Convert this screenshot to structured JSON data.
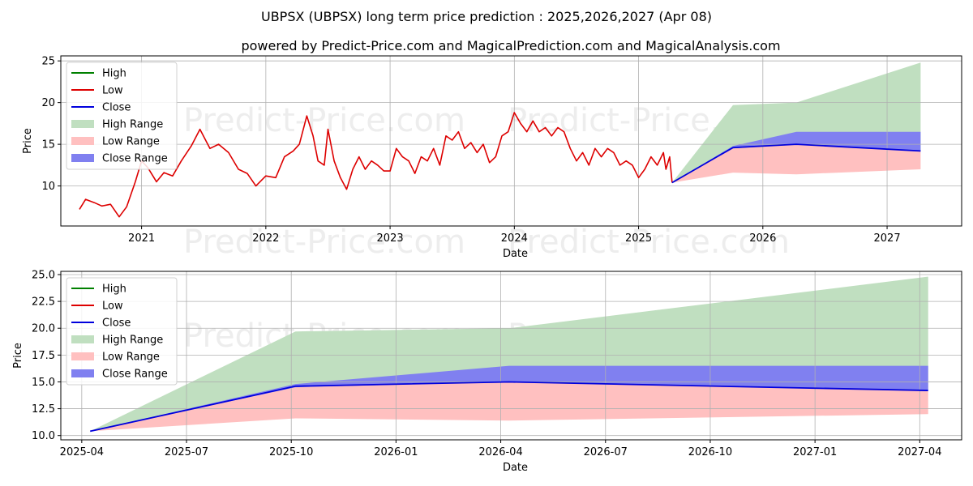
{
  "title": "UBPSX (UBPSX) long term price prediction : 2025,2026,2027 (Apr 08)",
  "subtitle": "powered by Predict-Price.com and MagicalPrediction.com and MagicalAnalysis.com",
  "watermark": "Predict-Price.com",
  "colors": {
    "high": "#008000",
    "low": "#dd0000",
    "close": "#0000dd",
    "high_range": "#c0dfc0",
    "low_range": "#ffc0c0",
    "close_range": "#8080f0",
    "grid": "#b0b0b0"
  },
  "legend": {
    "high": "High",
    "low": "Low",
    "close": "Close",
    "high_range": "High Range",
    "low_range": "Low Range",
    "close_range": "Close Range"
  },
  "chart_data": [
    {
      "type": "line",
      "title": "UBPSX (UBPSX) long term price prediction : 2025,2026,2027 (Apr 08)",
      "xlabel": "Date",
      "ylabel": "Price",
      "xlim": [
        2020.35,
        2027.6
      ],
      "ylim": [
        5.2,
        25.6
      ],
      "x_ticks": [
        2021,
        2022,
        2023,
        2024,
        2025,
        2026,
        2027
      ],
      "x_tick_labels": [
        "2021",
        "2022",
        "2023",
        "2024",
        "2025",
        "2026",
        "2027"
      ],
      "y_ticks": [
        10,
        15,
        20,
        25
      ],
      "y_tick_labels": [
        "10",
        "15",
        "20",
        "25"
      ],
      "grid": true,
      "legend_position": "upper-left",
      "history_low": {
        "x": [
          2020.5,
          2020.55,
          2020.62,
          2020.68,
          2020.75,
          2020.82,
          2020.88,
          2020.95,
          2021.0,
          2021.05,
          2021.12,
          2021.18,
          2021.25,
          2021.32,
          2021.4,
          2021.47,
          2021.55,
          2021.62,
          2021.7,
          2021.78,
          2021.85,
          2021.92,
          2022.0,
          2022.08,
          2022.15,
          2022.22,
          2022.27,
          2022.33,
          2022.38,
          2022.42,
          2022.47,
          2022.5,
          2022.55,
          2022.6,
          2022.65,
          2022.7,
          2022.75,
          2022.8,
          2022.85,
          2022.9,
          2022.95,
          2023.0,
          2023.05,
          2023.1,
          2023.15,
          2023.2,
          2023.25,
          2023.3,
          2023.35,
          2023.4,
          2023.45,
          2023.5,
          2023.55,
          2023.6,
          2023.65,
          2023.7,
          2023.75,
          2023.8,
          2023.85,
          2023.9,
          2023.95,
          2024.0,
          2024.05,
          2024.1,
          2024.15,
          2024.2,
          2024.25,
          2024.3,
          2024.35,
          2024.4,
          2024.45,
          2024.5,
          2024.55,
          2024.6,
          2024.65,
          2024.7,
          2024.75,
          2024.8,
          2024.85,
          2024.9,
          2024.95,
          2025.0,
          2025.05,
          2025.1,
          2025.15,
          2025.2,
          2025.22,
          2025.25,
          2025.27
        ],
        "values": [
          7.2,
          8.4,
          8.0,
          7.6,
          7.8,
          6.3,
          7.5,
          10.5,
          13.0,
          12.2,
          10.5,
          11.6,
          11.2,
          13.0,
          14.8,
          16.8,
          14.5,
          15.0,
          14.0,
          12.0,
          11.5,
          10.0,
          11.2,
          11.0,
          13.5,
          14.2,
          15.0,
          18.4,
          16.0,
          13.0,
          12.5,
          16.8,
          13.0,
          11.0,
          9.6,
          12.0,
          13.5,
          12.0,
          13.0,
          12.5,
          11.8,
          11.8,
          14.5,
          13.5,
          13.0,
          11.5,
          13.5,
          13.0,
          14.5,
          12.5,
          16.0,
          15.5,
          16.5,
          14.5,
          15.2,
          14.0,
          15.0,
          12.8,
          13.5,
          16.0,
          16.5,
          18.8,
          17.5,
          16.5,
          17.8,
          16.5,
          17.0,
          16.0,
          17.0,
          16.5,
          14.5,
          13.0,
          14.0,
          12.5,
          14.5,
          13.5,
          14.5,
          14.0,
          12.5,
          13.0,
          12.5,
          11.0,
          12.0,
          13.5,
          12.5,
          14.0,
          12.0,
          13.5,
          10.4
        ]
      },
      "forecast": {
        "x": [
          2025.27,
          2025.76,
          2026.27,
          2027.27
        ],
        "close": [
          10.4,
          14.6,
          15.0,
          14.2
        ],
        "high_range_upper": [
          10.4,
          19.7,
          20.0,
          24.8
        ],
        "low_range_lower": [
          10.4,
          11.6,
          11.4,
          12.0
        ],
        "close_range_upper": [
          10.4,
          14.8,
          16.5,
          16.5
        ],
        "close_range_lower": [
          10.4,
          14.5,
          15.0,
          14.2
        ]
      }
    },
    {
      "type": "line",
      "xlabel": "Date",
      "ylabel": "Price",
      "xlim": [
        2025.2,
        2027.35
      ],
      "ylim": [
        9.6,
        25.3
      ],
      "x_ticks": [
        2025.25,
        2025.5,
        2025.75,
        2026.0,
        2026.25,
        2026.5,
        2026.75,
        2027.0,
        2027.25
      ],
      "x_tick_labels": [
        "2025-04",
        "2025-07",
        "2025-10",
        "2026-01",
        "2026-04",
        "2026-07",
        "2026-10",
        "2027-01",
        "2027-04"
      ],
      "y_ticks": [
        10.0,
        12.5,
        15.0,
        17.5,
        20.0,
        22.5,
        25.0
      ],
      "y_tick_labels": [
        "10.0",
        "12.5",
        "15.0",
        "17.5",
        "20.0",
        "22.5",
        "25.0"
      ],
      "grid": true,
      "legend_position": "upper-left",
      "forecast": {
        "x": [
          2025.27,
          2025.76,
          2026.27,
          2027.27
        ],
        "close": [
          10.4,
          14.6,
          15.0,
          14.2
        ],
        "high_range_upper": [
          10.4,
          19.7,
          20.0,
          24.8
        ],
        "low_range_lower": [
          10.4,
          11.6,
          11.4,
          12.0
        ],
        "close_range_upper": [
          10.4,
          14.8,
          16.5,
          16.5
        ],
        "close_range_lower": [
          10.4,
          14.5,
          15.0,
          14.2
        ]
      }
    }
  ]
}
